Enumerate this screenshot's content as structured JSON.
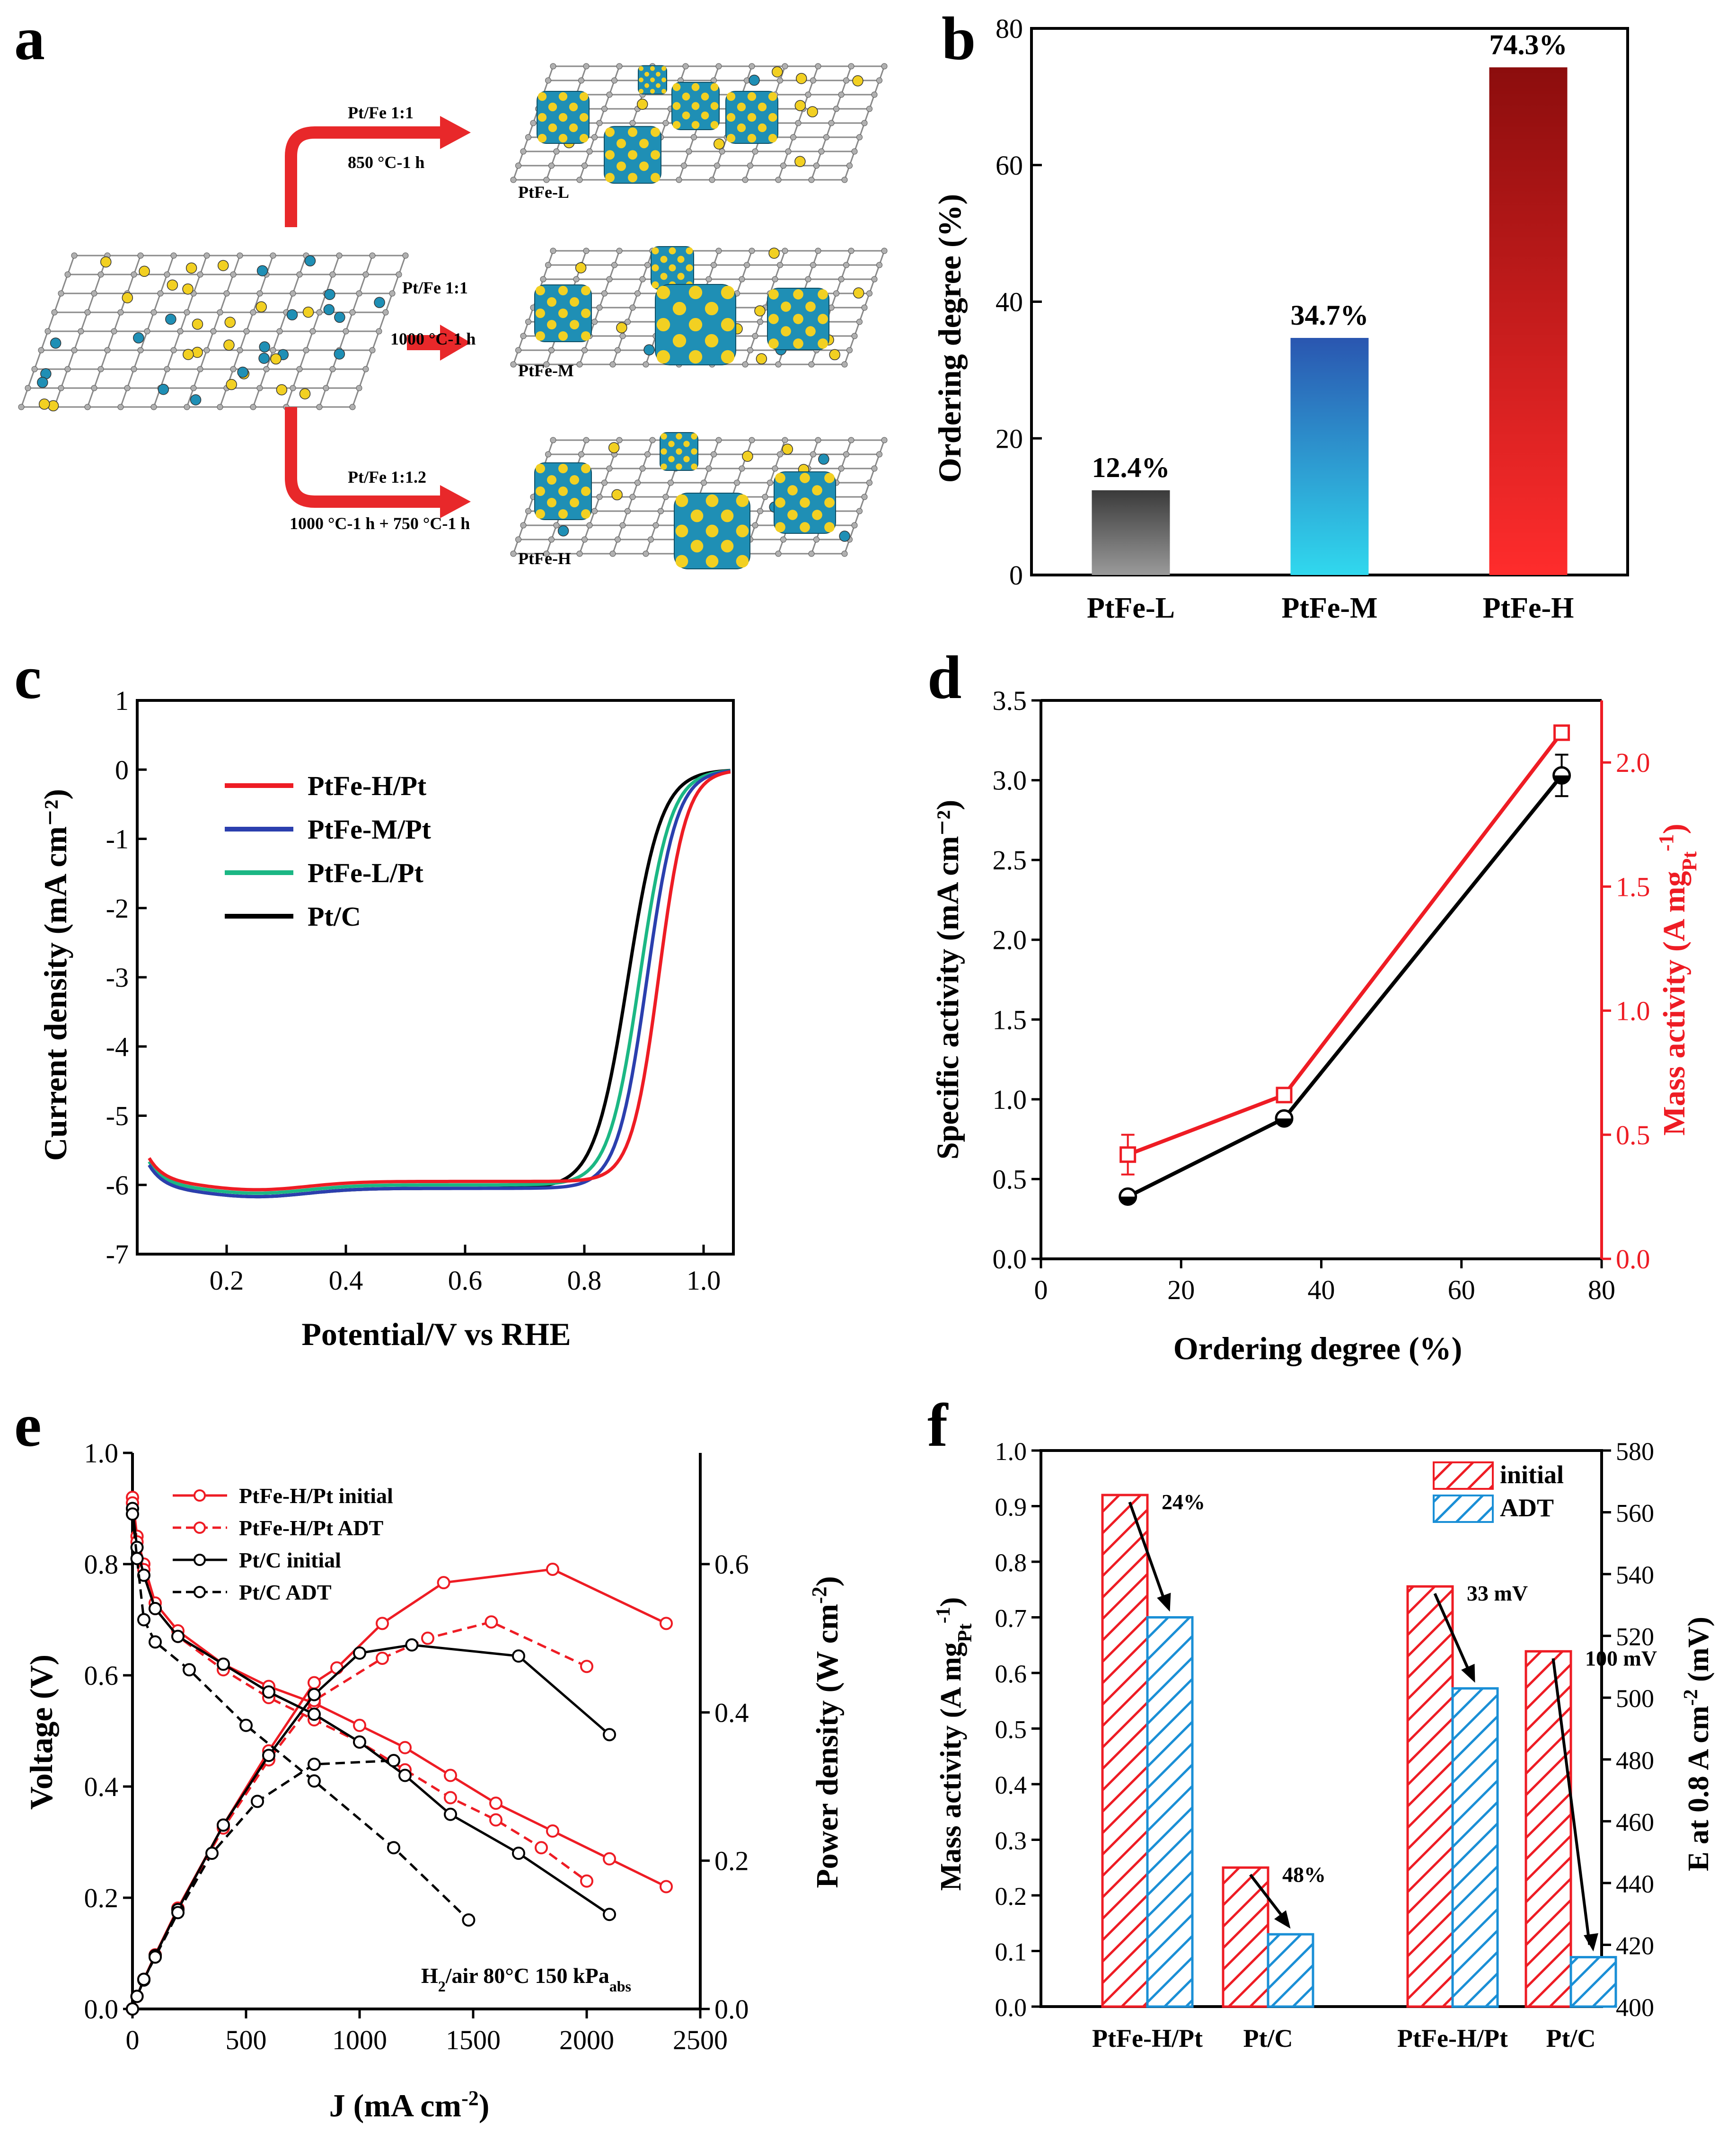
{
  "panel_letters": {
    "a": "a",
    "b": "b",
    "c": "c",
    "d": "d",
    "e": "e",
    "f": "f"
  },
  "schematic": {
    "routes": [
      {
        "ratio": "Pt/Fe 1:1",
        "condition": "850 °C-1 h",
        "product": "PtFe-L"
      },
      {
        "ratio": "Pt/Fe 1:1",
        "condition": "1000 °C-1 h",
        "product": "PtFe-M"
      },
      {
        "ratio": "Pt/Fe 1:1.2",
        "condition": "1000 °C-1 h + 750 °C-1 h",
        "product": "PtFe-H"
      }
    ],
    "colors": {
      "carbon": "#8a8a8a",
      "pt": "#f2d022",
      "fe": "#1f8fb5",
      "arrow": "#e8282a"
    }
  },
  "chart_data": [
    {
      "id": "b",
      "type": "bar",
      "ylabel": "Ordering degree (%)",
      "ylim": [
        0,
        80
      ],
      "yticks": [
        0,
        20,
        40,
        60,
        80
      ],
      "categories": [
        "PtFe-L",
        "PtFe-M",
        "PtFe-H"
      ],
      "values": [
        12.4,
        34.7,
        74.3
      ],
      "value_labels": [
        "12.4%",
        "34.7%",
        "74.3%"
      ],
      "colors": [
        [
          "#3a3a3a",
          "#9a9a9a"
        ],
        [
          "#2a56b0",
          "#30d8ee"
        ],
        [
          "#8c0d0d",
          "#ff2c2c"
        ]
      ]
    },
    {
      "id": "c",
      "type": "line",
      "xlabel": "Potential/V vs RHE",
      "ylabel": "Current density (mA cm⁻²)",
      "xlim": [
        0.05,
        1.05
      ],
      "ylim": [
        -7,
        1
      ],
      "xticks": [
        0.2,
        0.4,
        0.6,
        0.8,
        1.0
      ],
      "xtick_labels": [
        "0.2",
        "0.4",
        "0.6",
        "0.8",
        "1.0"
      ],
      "yticks": [
        1,
        0,
        -1,
        -2,
        -3,
        -4,
        -5,
        -6,
        -7
      ],
      "series": [
        {
          "name": "PtFe-H/Pt",
          "color": "#ee1c24",
          "half_wave": 0.925,
          "k": 0.023,
          "x0": 0.07,
          "plateau": -5.95
        },
        {
          "name": "PtFe-M/Pt",
          "color": "#2b3fae",
          "half_wave": 0.905,
          "k": 0.025,
          "x0": 0.07,
          "plateau": -6.05
        },
        {
          "name": "PtFe-L/Pt",
          "color": "#1bb784",
          "half_wave": 0.893,
          "k": 0.026,
          "x0": 0.07,
          "plateau": -6.0
        },
        {
          "name": "Pt/C",
          "color": "#000000",
          "half_wave": 0.873,
          "k": 0.028,
          "x0": 0.07,
          "plateau": -6.05
        }
      ]
    },
    {
      "id": "d",
      "type": "line",
      "xlabel": "Ordering degree (%)",
      "ylabel": "Specific activity (mA cm⁻²)",
      "y2label": "Mass activity (A mg",
      "y2label_sub": "Pt",
      "y2label_sup": "-1",
      "y2label_end": ")",
      "xlim": [
        0,
        80
      ],
      "ylim": [
        0,
        3.5
      ],
      "y2lim": [
        0,
        2.25
      ],
      "xticks": [
        0,
        20,
        40,
        60,
        80
      ],
      "yticks": [
        0.0,
        0.5,
        1.0,
        1.5,
        2.0,
        2.5,
        3.0,
        3.5
      ],
      "ytick_labels": [
        "0.0",
        "0.5",
        "1.0",
        "1.5",
        "2.0",
        "2.5",
        "3.0",
        "3.5"
      ],
      "y2ticks": [
        0.0,
        0.5,
        1.0,
        1.5,
        2.0
      ],
      "y2tick_labels": [
        "0.0",
        "0.5",
        "1.0",
        "1.5",
        "2.0"
      ],
      "series": [
        {
          "name": "Specific activity",
          "axis": "left",
          "color": "#000000",
          "x": [
            12.4,
            34.7,
            74.3
          ],
          "y": [
            0.39,
            0.88,
            3.03
          ],
          "err": [
            0.02,
            0.03,
            0.13
          ],
          "marker": "half-circle"
        },
        {
          "name": "Mass activity",
          "axis": "right",
          "color": "#ee1c24",
          "x": [
            12.4,
            34.7,
            74.3
          ],
          "y": [
            0.42,
            0.66,
            2.12
          ],
          "err": [
            0.08,
            0.02,
            0.02
          ],
          "marker": "open-square"
        }
      ]
    },
    {
      "id": "e",
      "type": "line",
      "xlabel": "J (mA cm",
      "xlabel_sup": "-2",
      "xlabel_end": ")",
      "ylabel": "Voltage (V)",
      "y2label": "Power density (W cm",
      "y2label_sup": "-2",
      "y2label_end": ")",
      "xlim": [
        0,
        2500
      ],
      "ylim": [
        0.0,
        1.0
      ],
      "y2lim": [
        0.0,
        0.75
      ],
      "xticks": [
        0,
        500,
        1000,
        1500,
        2000,
        2500
      ],
      "yticks": [
        0.0,
        0.2,
        0.4,
        0.6,
        0.8,
        1.0
      ],
      "ytick_labels": [
        "0.0",
        "0.2",
        "0.4",
        "0.6",
        "0.8",
        "1.0"
      ],
      "y2ticks": [
        0.0,
        0.2,
        0.4,
        0.6
      ],
      "y2tick_labels": [
        "0.0",
        "0.2",
        "0.4",
        "0.6"
      ],
      "annotation": {
        "prefix": "H",
        "sub1": "2",
        "mid": "/air  80°C  150 kPa",
        "sub2": "abs"
      },
      "legend": [
        {
          "label": "PtFe-H/Pt  initial",
          "color": "#ee1c24",
          "dash": false
        },
        {
          "label": "PtFe-H/Pt  ADT",
          "color": "#ee1c24",
          "dash": true
        },
        {
          "label": "Pt/C  initial",
          "color": "#000000",
          "dash": false
        },
        {
          "label": "Pt/C  ADT",
          "color": "#000000",
          "dash": true
        }
      ],
      "series": [
        {
          "name": "PtFe-H/Pt initial",
          "kind": "voltage",
          "color": "#ee1c24",
          "dash": false,
          "x": [
            0,
            20,
            50,
            100,
            200,
            400,
            600,
            800,
            1000,
            1200,
            1400,
            1600,
            1850,
            2100,
            2350
          ],
          "y": [
            0.92,
            0.85,
            0.8,
            0.73,
            0.68,
            0.62,
            0.58,
            0.55,
            0.51,
            0.47,
            0.42,
            0.37,
            0.32,
            0.27,
            0.22
          ]
        },
        {
          "name": "PtFe-H/Pt initial",
          "kind": "power",
          "color": "#ee1c24",
          "dash": false,
          "x": [
            0,
            20,
            50,
            100,
            200,
            400,
            600,
            800,
            900,
            1100,
            1370,
            1850,
            2350
          ],
          "y": [
            0.0,
            0.017,
            0.04,
            0.073,
            0.136,
            0.248,
            0.348,
            0.44,
            0.46,
            0.52,
            0.575,
            0.593,
            0.52
          ]
        },
        {
          "name": "PtFe-H/Pt ADT",
          "kind": "voltage",
          "color": "#ee1c24",
          "dash": true,
          "x": [
            0,
            20,
            50,
            100,
            200,
            400,
            600,
            800,
            1000,
            1200,
            1400,
            1600,
            1800,
            2000
          ],
          "y": [
            0.91,
            0.84,
            0.79,
            0.72,
            0.67,
            0.61,
            0.56,
            0.52,
            0.48,
            0.43,
            0.38,
            0.34,
            0.29,
            0.23
          ]
        },
        {
          "name": "PtFe-H/Pt ADT",
          "kind": "power",
          "color": "#ee1c24",
          "dash": true,
          "x": [
            0,
            20,
            50,
            100,
            200,
            400,
            600,
            800,
            1100,
            1300,
            1580,
            2000
          ],
          "y": [
            0.0,
            0.017,
            0.04,
            0.072,
            0.134,
            0.244,
            0.336,
            0.416,
            0.473,
            0.5,
            0.522,
            0.462
          ]
        },
        {
          "name": "Pt/C initial",
          "kind": "voltage",
          "color": "#000000",
          "dash": false,
          "x": [
            0,
            20,
            50,
            100,
            200,
            400,
            600,
            800,
            1000,
            1200,
            1400,
            1700,
            2100
          ],
          "y": [
            0.9,
            0.83,
            0.78,
            0.72,
            0.67,
            0.62,
            0.57,
            0.53,
            0.48,
            0.42,
            0.35,
            0.28,
            0.17
          ]
        },
        {
          "name": "Pt/C initial",
          "kind": "power",
          "color": "#000000",
          "dash": false,
          "x": [
            0,
            20,
            50,
            100,
            200,
            400,
            600,
            800,
            1000,
            1230,
            1700,
            2100
          ],
          "y": [
            0.0,
            0.017,
            0.039,
            0.072,
            0.134,
            0.248,
            0.342,
            0.424,
            0.48,
            0.491,
            0.476,
            0.37
          ]
        },
        {
          "name": "Pt/C ADT",
          "kind": "voltage",
          "color": "#000000",
          "dash": true,
          "x": [
            0,
            20,
            50,
            100,
            250,
            500,
            800,
            1150,
            1480
          ],
          "y": [
            0.89,
            0.81,
            0.7,
            0.66,
            0.61,
            0.51,
            0.41,
            0.29,
            0.16
          ]
        },
        {
          "name": "Pt/C ADT",
          "kind": "power",
          "color": "#000000",
          "dash": true,
          "x": [
            0,
            20,
            50,
            100,
            200,
            350,
            550,
            800,
            1150
          ],
          "y": [
            0.0,
            0.017,
            0.04,
            0.07,
            0.13,
            0.21,
            0.28,
            0.33,
            0.335
          ]
        }
      ]
    },
    {
      "id": "f",
      "type": "bar",
      "ylabel": "Mass activity (A mg",
      "ylabel_sub": "Pt",
      "ylabel_sup": "-1",
      "ylabel_end": ")",
      "y2label": "E at 0.8 A cm",
      "y2label_sup": "-2",
      "y2label_end": " (mV)",
      "ylim": [
        0,
        1.0
      ],
      "y2lim": [
        400,
        580
      ],
      "yticks": [
        0.0,
        0.1,
        0.2,
        0.3,
        0.4,
        0.5,
        0.6,
        0.7,
        0.8,
        0.9,
        1.0
      ],
      "ytick_labels": [
        "0.0",
        "0.1",
        "0.2",
        "0.3",
        "0.4",
        "0.5",
        "0.6",
        "0.7",
        "0.8",
        "0.9",
        "1.0"
      ],
      "y2ticks": [
        400,
        420,
        440,
        460,
        480,
        500,
        520,
        540,
        560,
        580
      ],
      "categories": [
        "PtFe-H/Pt",
        "Pt/C",
        "PtFe-H/Pt",
        "Pt/C"
      ],
      "legend": [
        "initial",
        "ADT"
      ],
      "series": [
        {
          "name": "initial",
          "color": "#ee1c24",
          "values_left": [
            0.92,
            0.25
          ],
          "values_right": [
            536,
            515
          ]
        },
        {
          "name": "ADT",
          "color": "#1a8fd6",
          "values_left": [
            0.7,
            0.13
          ],
          "values_right": [
            503,
            416
          ]
        }
      ],
      "changes": [
        "24%",
        "48%",
        "33 mV",
        "100 mV"
      ]
    }
  ]
}
